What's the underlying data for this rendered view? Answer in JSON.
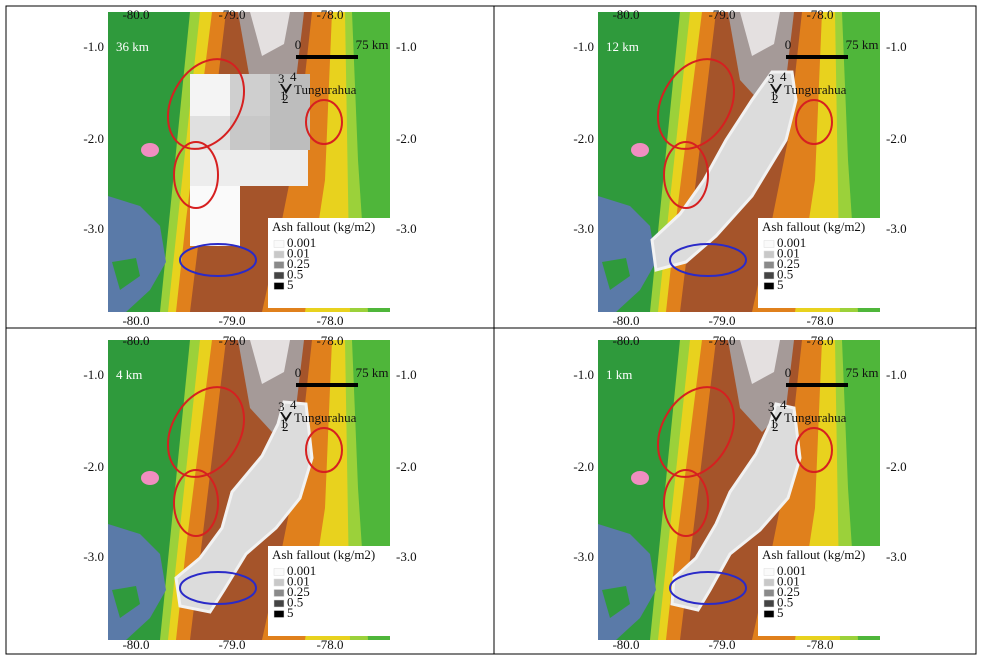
{
  "panels": [
    {
      "label": "36 km"
    },
    {
      "label": "12 km"
    },
    {
      "label": "4 km"
    },
    {
      "label": "1 km"
    }
  ],
  "x_axis": {
    "labels": [
      "-80.0",
      "-79.0",
      "-78.0"
    ]
  },
  "y_axis": {
    "labels": [
      "-1.0",
      "-2.0",
      "-3.0"
    ]
  },
  "scale_bar": {
    "start": "0",
    "end": "75 km"
  },
  "volcano": {
    "name": "Tungurahua",
    "vents": [
      "1",
      "2",
      "3",
      "4"
    ]
  },
  "legend": {
    "title": "Ash fallout (kg/m2)",
    "items": [
      "0.001",
      "0.01",
      "0.25",
      "0.5",
      "5"
    ]
  }
}
